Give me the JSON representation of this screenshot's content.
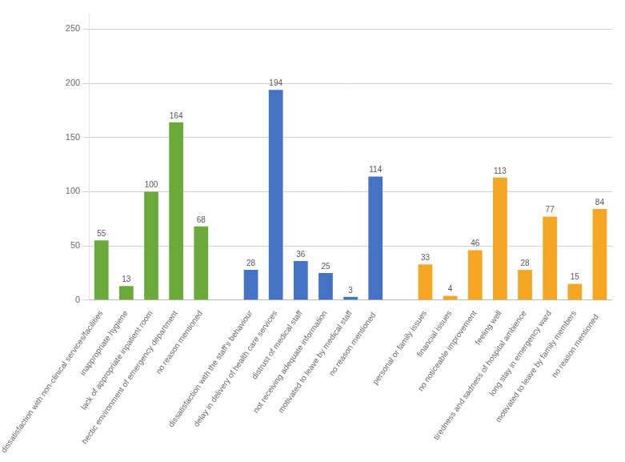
{
  "chart_data": {
    "type": "bar",
    "categories": [
      "dissatisfaction with non-clinical services/facilities",
      "inappropriate hygiene",
      "lack of appropriate inpatient room",
      "hectic environment of emergency department",
      "no reason mentioned",
      null,
      "dissatisfaction with the staff's behaviour",
      "delay in delivery of health care services",
      "distrust of medical staff",
      "not receiving adequate information",
      "motivated to leave by medical staff",
      "no reason mentioned ",
      null,
      "personal or family issues",
      "financial issues",
      "no noticeable improvement",
      "feeling well",
      "tiredness and sadness of hospital ambience",
      "long stay in emergency ward",
      "motivated to leave by family members",
      "no reason mentioned  "
    ],
    "values": [
      55,
      13,
      100,
      164,
      68,
      null,
      28,
      194,
      36,
      25,
      3,
      114,
      null,
      33,
      4,
      46,
      113,
      28,
      77,
      15,
      84
    ],
    "colors": [
      "#6aaa3a",
      "#6aaa3a",
      "#6aaa3a",
      "#6aaa3a",
      "#6aaa3a",
      null,
      "#4472c4",
      "#4472c4",
      "#4472c4",
      "#4472c4",
      "#4472c4",
      "#4472c4",
      null,
      "#f5a623",
      "#f5a623",
      "#f5a623",
      "#f5a623",
      "#f5a623",
      "#f5a623",
      "#f5a623",
      "#f5a623"
    ],
    "ylim": [
      0,
      265
    ],
    "yticks": [
      0,
      50,
      100,
      150,
      200,
      250
    ],
    "grid": true,
    "data_labels": true
  }
}
